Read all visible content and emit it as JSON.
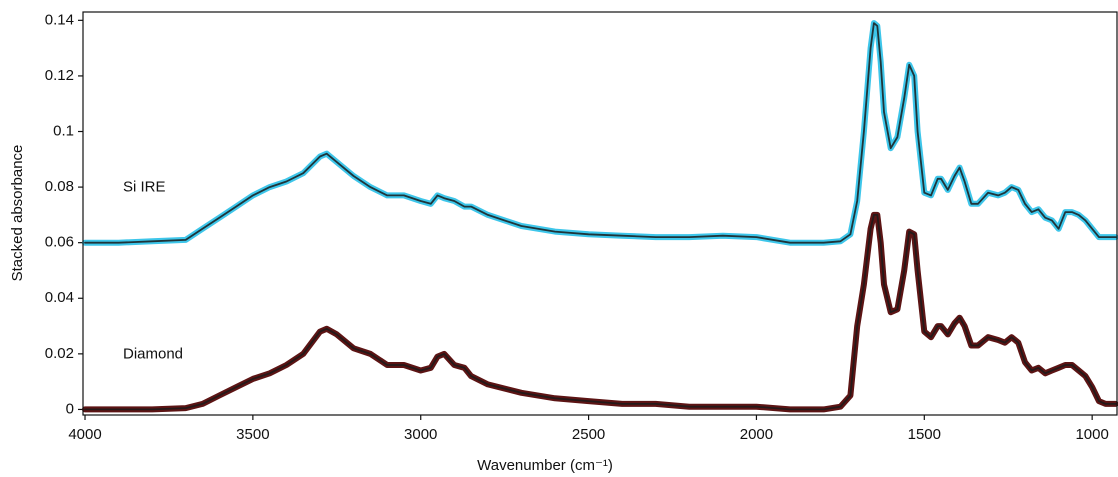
{
  "chart_data": {
    "type": "line",
    "x_label": "Wavenumber (cm⁻¹)",
    "y_label": "Stacked absorbance",
    "xlim": [
      4006,
      926
    ],
    "ylim": [
      -0.002,
      0.143
    ],
    "xticks": [
      4000,
      3500,
      3000,
      2500,
      2000,
      1500,
      1000
    ],
    "yticks": [
      0,
      0.02,
      0.04,
      0.06,
      0.08,
      0.1,
      0.12,
      0.14
    ],
    "x": [
      4000,
      3900,
      3800,
      3700,
      3650,
      3600,
      3550,
      3500,
      3450,
      3400,
      3350,
      3300,
      3280,
      3250,
      3200,
      3150,
      3100,
      3050,
      3000,
      2970,
      2950,
      2930,
      2900,
      2870,
      2850,
      2800,
      2700,
      2600,
      2500,
      2400,
      2300,
      2200,
      2100,
      2000,
      1900,
      1800,
      1750,
      1720,
      1700,
      1680,
      1660,
      1650,
      1640,
      1630,
      1620,
      1600,
      1580,
      1560,
      1545,
      1530,
      1520,
      1500,
      1480,
      1460,
      1450,
      1430,
      1410,
      1395,
      1380,
      1360,
      1340,
      1310,
      1280,
      1260,
      1240,
      1220,
      1200,
      1180,
      1160,
      1140,
      1120,
      1100,
      1080,
      1060,
      1040,
      1020,
      1000,
      980,
      960,
      930
    ],
    "series": [
      {
        "name": "Si IRE",
        "color": "#3ec6ea",
        "values": [
          0.06,
          0.06,
          0.0605,
          0.061,
          0.065,
          0.069,
          0.073,
          0.077,
          0.08,
          0.082,
          0.085,
          0.091,
          0.092,
          0.089,
          0.084,
          0.08,
          0.077,
          0.077,
          0.075,
          0.074,
          0.077,
          0.076,
          0.075,
          0.073,
          0.073,
          0.07,
          0.066,
          0.064,
          0.063,
          0.0625,
          0.062,
          0.062,
          0.0625,
          0.062,
          0.06,
          0.06,
          0.0605,
          0.063,
          0.075,
          0.1,
          0.13,
          0.139,
          0.138,
          0.125,
          0.107,
          0.094,
          0.098,
          0.112,
          0.124,
          0.12,
          0.1,
          0.078,
          0.077,
          0.083,
          0.083,
          0.079,
          0.084,
          0.087,
          0.082,
          0.074,
          0.074,
          0.078,
          0.077,
          0.078,
          0.08,
          0.079,
          0.074,
          0.071,
          0.072,
          0.069,
          0.068,
          0.065,
          0.071,
          0.071,
          0.07,
          0.068,
          0.065,
          0.062,
          0.062,
          0.062
        ]
      },
      {
        "name": "Diamond",
        "color": "#5c1414",
        "values": [
          0,
          0,
          0,
          0.0005,
          0.002,
          0.005,
          0.008,
          0.011,
          0.013,
          0.016,
          0.02,
          0.028,
          0.029,
          0.027,
          0.022,
          0.02,
          0.016,
          0.016,
          0.014,
          0.015,
          0.019,
          0.02,
          0.016,
          0.015,
          0.012,
          0.009,
          0.006,
          0.004,
          0.003,
          0.002,
          0.002,
          0.001,
          0.001,
          0.001,
          0,
          0,
          0.001,
          0.005,
          0.03,
          0.045,
          0.065,
          0.07,
          0.07,
          0.06,
          0.045,
          0.035,
          0.036,
          0.05,
          0.064,
          0.063,
          0.05,
          0.028,
          0.026,
          0.03,
          0.03,
          0.027,
          0.031,
          0.033,
          0.03,
          0.023,
          0.023,
          0.026,
          0.025,
          0.024,
          0.026,
          0.024,
          0.017,
          0.014,
          0.015,
          0.013,
          0.014,
          0.015,
          0.016,
          0.016,
          0.014,
          0.012,
          0.008,
          0.003,
          0.002,
          0.002
        ]
      }
    ]
  }
}
